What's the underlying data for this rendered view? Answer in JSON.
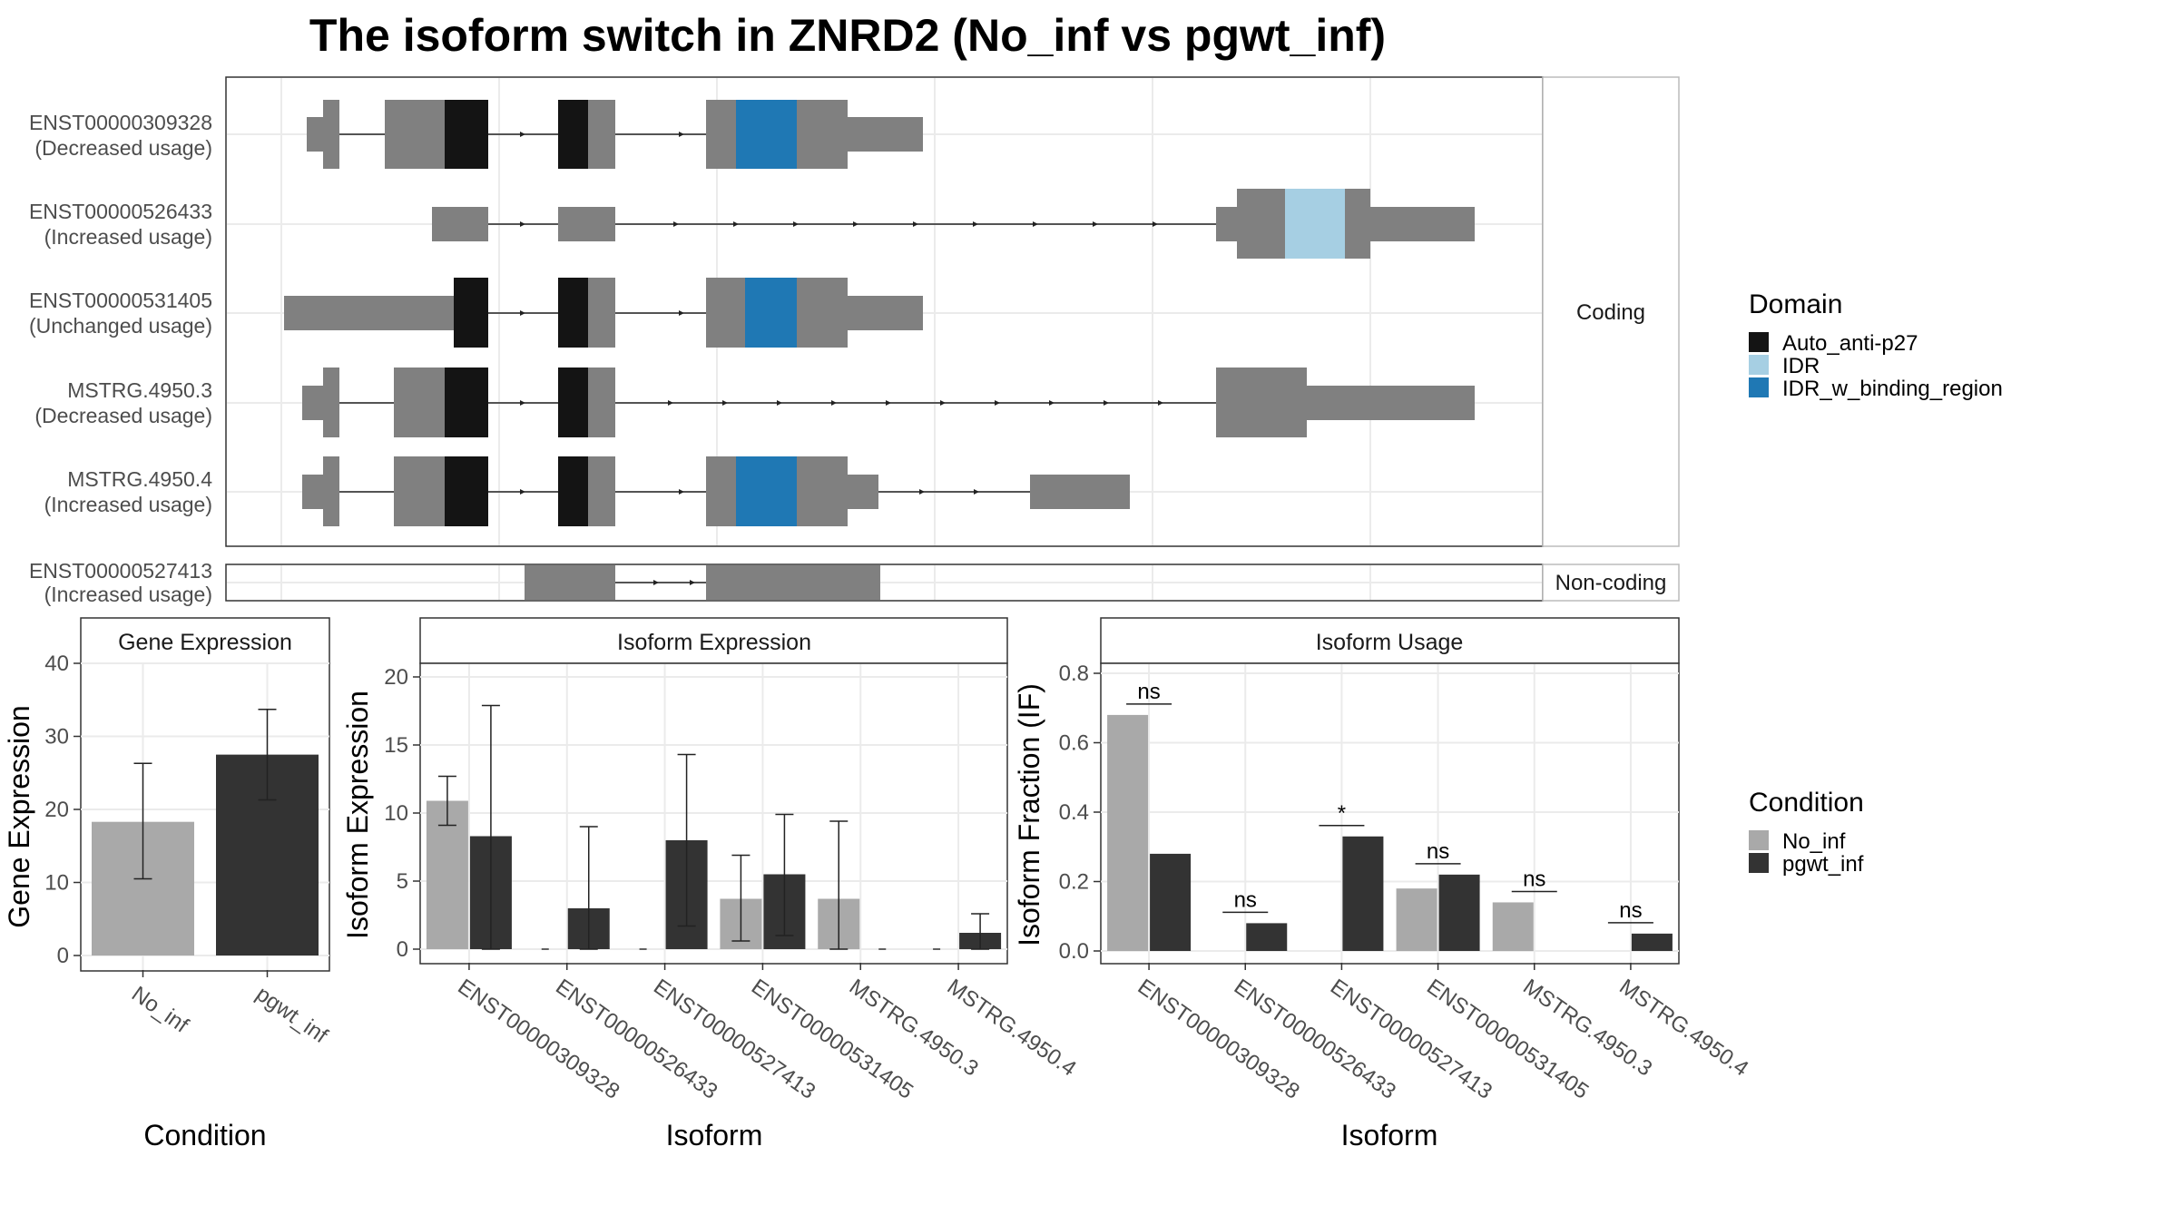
{
  "title": "The isoform switch in ZNRD2 (No_inf vs pgwt_inf)",
  "colors": {
    "exon": "#808080",
    "Auto_anti-p27": "#141414",
    "IDR": "#a6cfe3",
    "IDR_w_binding_region": "#1f78b4",
    "No_inf": "#a9a9a9",
    "pgwt_inf": "#333333"
  },
  "isoform_structures": {
    "coding_strip_label": "Coding",
    "noncoding_strip_label": "Non-coding",
    "coding": [
      {
        "id": "ENST00000309328",
        "usage": "(Decreased usage)"
      },
      {
        "id": "ENST00000526433",
        "usage": "(Increased usage)"
      },
      {
        "id": "ENST00000531405",
        "usage": "(Unchanged usage)"
      },
      {
        "id": "MSTRG.4950.3",
        "usage": "(Decreased usage)"
      },
      {
        "id": "MSTRG.4950.4",
        "usage": "(Increased usage)"
      }
    ],
    "noncoding": [
      {
        "id": "ENST00000527413",
        "usage": "(Increased usage)"
      }
    ]
  },
  "legends": {
    "domain": {
      "title": "Domain",
      "entries": [
        "Auto_anti-p27",
        "IDR",
        "IDR_w_binding_region"
      ]
    },
    "condition": {
      "title": "Condition",
      "entries": [
        "No_inf",
        "pgwt_inf"
      ]
    }
  },
  "chart_data": [
    {
      "type": "bar",
      "title": "Gene Expression",
      "xlabel": "Condition",
      "ylabel": "Gene Expression",
      "categories": [
        "No_inf",
        "pgwt_inf"
      ],
      "values": [
        18.3,
        27.5
      ],
      "error_low": [
        10.5,
        21.3
      ],
      "error_high": [
        26.3,
        33.7
      ],
      "ylim": [
        0,
        40
      ],
      "yticks": [
        0,
        10,
        20,
        30,
        40
      ]
    },
    {
      "type": "bar",
      "title": "Isoform Expression",
      "xlabel": "Isoform",
      "ylabel": "Isoform Expression",
      "categories": [
        "ENST00000309328",
        "ENST00000526433",
        "ENST00000527413",
        "ENST00000531405",
        "MSTRG.4950.3",
        "MSTRG.4950.4"
      ],
      "series": [
        {
          "name": "No_inf",
          "values": [
            10.9,
            0,
            0,
            3.7,
            3.7,
            0
          ],
          "error_low": [
            9.1,
            0,
            0,
            0.6,
            0,
            0
          ],
          "error_high": [
            12.7,
            0,
            0,
            6.9,
            9.4,
            0
          ]
        },
        {
          "name": "pgwt_inf",
          "values": [
            8.3,
            3.0,
            8.0,
            5.5,
            0,
            1.2
          ],
          "error_low": [
            0,
            0,
            1.7,
            1.0,
            0,
            0
          ],
          "error_high": [
            17.9,
            9.0,
            14.3,
            9.9,
            0,
            2.6
          ]
        }
      ],
      "ylim": [
        0,
        21
      ],
      "yticks": [
        0,
        5,
        10,
        15,
        20
      ]
    },
    {
      "type": "bar",
      "title": "Isoform Usage",
      "xlabel": "Isoform",
      "ylabel": "Isoform Fraction (IF)",
      "categories": [
        "ENST00000309328",
        "ENST00000526433",
        "ENST00000527413",
        "ENST00000531405",
        "MSTRG.4950.3",
        "MSTRG.4950.4"
      ],
      "series": [
        {
          "name": "No_inf",
          "values": [
            0.68,
            0,
            0,
            0.18,
            0.14,
            0
          ]
        },
        {
          "name": "pgwt_inf",
          "values": [
            0.28,
            0.08,
            0.33,
            0.22,
            0,
            0.05
          ]
        }
      ],
      "significance": [
        "ns",
        "ns",
        "*",
        "ns",
        "ns",
        "ns"
      ],
      "ylim": [
        0,
        0.8
      ],
      "yticks": [
        "0.0",
        "0.2",
        "0.4",
        "0.6",
        "0.8"
      ]
    }
  ]
}
